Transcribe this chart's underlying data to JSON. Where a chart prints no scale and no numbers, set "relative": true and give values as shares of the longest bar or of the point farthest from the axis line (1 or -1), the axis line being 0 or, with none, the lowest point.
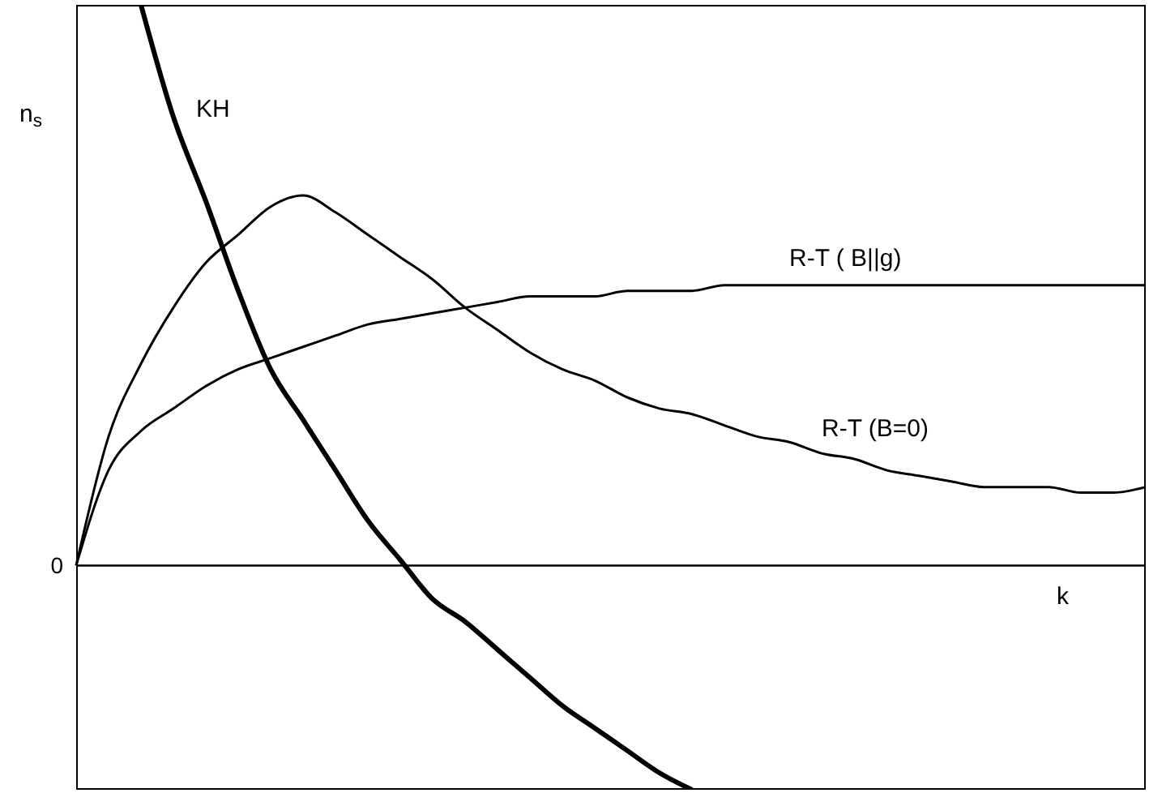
{
  "chart_data": {
    "type": "line",
    "relative": true,
    "xlabel": "k",
    "ylabel": "n$_{s}$",
    "annotations": [
      "0"
    ],
    "marker": "none",
    "categories": [
      null,
      null,
      null,
      null,
      null,
      null,
      null,
      null,
      null,
      null,
      null,
      null,
      null,
      null,
      null,
      null,
      null,
      null,
      null,
      null,
      null,
      null,
      null,
      null,
      null,
      null,
      null,
      null,
      null,
      null,
      null,
      null,
      null,
      null
    ],
    "series": [
      {
        "name": "KH",
        "color": "#000000",
        "values": [
          null,
          null,
          1.0,
          0.8,
          0.65,
          0.49,
          0.35,
          0.26,
          0.17,
          0.08,
          0.01,
          -0.06,
          -0.1,
          -0.15,
          -0.2,
          -0.25,
          -0.29,
          -0.33,
          -0.37,
          -0.4,
          null,
          null,
          null,
          null,
          null,
          null,
          null,
          null,
          null,
          null,
          null,
          null,
          null,
          null
        ]
      },
      {
        "name": "R-T ( B||g)",
        "color": "#000000",
        "values": [
          0,
          0.17,
          0.24,
          0.28,
          0.32,
          0.35,
          0.37,
          0.39,
          0.41,
          0.43,
          0.44,
          0.45,
          0.46,
          0.47,
          0.48,
          0.48,
          0.48,
          0.49,
          0.49,
          0.49,
          0.5,
          0.5,
          0.5,
          0.5,
          0.5,
          0.5,
          0.5,
          0.5,
          0.5,
          0.5,
          0.5,
          0.5,
          0.5,
          0.5
        ]
      },
      {
        "name": "R-T (B=0)",
        "color": "#000000",
        "values": [
          0,
          0.23,
          0.36,
          0.46,
          0.54,
          0.59,
          0.64,
          0.66,
          0.63,
          0.59,
          0.55,
          0.51,
          0.46,
          0.42,
          0.38,
          0.35,
          0.33,
          0.3,
          0.28,
          0.27,
          0.25,
          0.23,
          0.22,
          0.2,
          0.19,
          0.17,
          0.16,
          0.15,
          0.14,
          0.14,
          0.14,
          0.13,
          0.13,
          0.14
        ]
      }
    ]
  }
}
